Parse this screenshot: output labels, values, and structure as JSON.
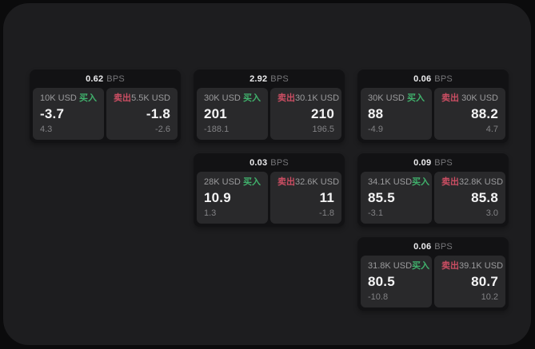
{
  "labels": {
    "bps_unit": "BPS",
    "buy": "买入",
    "sell": "卖出"
  },
  "colors": {
    "buy_green": "#40b16c",
    "sell_red": "#cb4e63",
    "window_bg": "#1d1d1f",
    "card_bg": "#121214",
    "pane_bg": "#29292b",
    "primary_text": "#f4f4f5",
    "muted_text": "#9b9b9d"
  },
  "cards": [
    {
      "bps": "0.62",
      "buy": {
        "amount": "10K USD",
        "price": "-3.7",
        "sub": "4.3"
      },
      "sell": {
        "amount": "5.5K USD",
        "price": "-1.8",
        "sub": "-2.6"
      }
    },
    {
      "bps": "2.92",
      "buy": {
        "amount": "30K USD",
        "price": "201",
        "sub": "-188.1"
      },
      "sell": {
        "amount": "30.1K USD",
        "price": "210",
        "sub": "196.5"
      }
    },
    {
      "bps": "0.06",
      "buy": {
        "amount": "30K USD",
        "price": "88",
        "sub": "-4.9"
      },
      "sell": {
        "amount": "30K USD",
        "price": "88.2",
        "sub": "4.7"
      }
    },
    {
      "bps": "0.03",
      "buy": {
        "amount": "28K USD",
        "price": "10.9",
        "sub": "1.3"
      },
      "sell": {
        "amount": "32.6K USD",
        "price": "11",
        "sub": "-1.8"
      }
    },
    {
      "bps": "0.09",
      "buy": {
        "amount": "34.1K USD",
        "price": "85.5",
        "sub": "-3.1"
      },
      "sell": {
        "amount": "32.8K USD",
        "price": "85.8",
        "sub": "3.0"
      }
    },
    {
      "bps": "0.06",
      "buy": {
        "amount": "31.8K USD",
        "price": "80.5",
        "sub": "-10.8"
      },
      "sell": {
        "amount": "39.1K USD",
        "price": "80.7",
        "sub": "10.2"
      }
    }
  ]
}
